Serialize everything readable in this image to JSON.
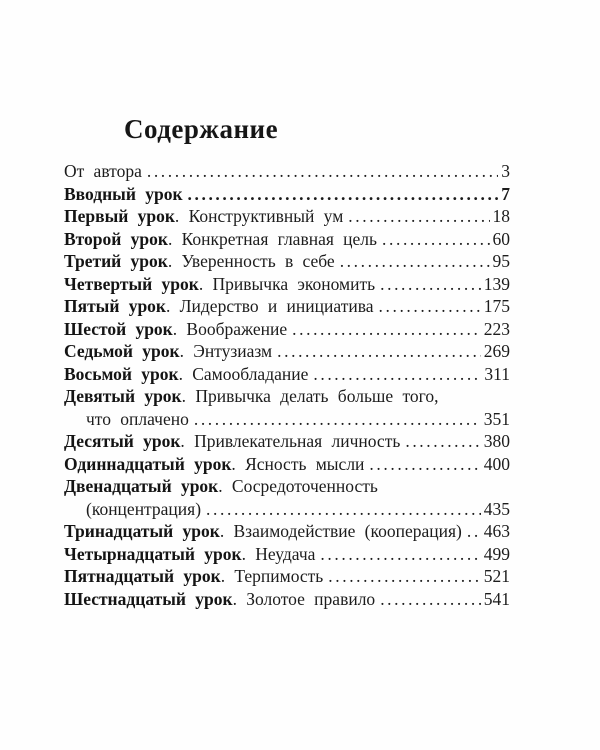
{
  "title": "Содержание",
  "toc": {
    "entries": [
      {
        "name": "",
        "sep": "",
        "title": "От автора",
        "page": "3",
        "bold": false
      },
      {
        "name": "Вводный урок",
        "sep": "",
        "title": "",
        "page": "7",
        "bold": true
      },
      {
        "name": "Первый урок",
        "sep": ".",
        "title": "Конструктивный ум",
        "page": "18",
        "bold": false
      },
      {
        "name": "Второй урок",
        "sep": ".",
        "title": "Конкретная главная цель",
        "page": "60",
        "bold": false
      },
      {
        "name": "Третий урок",
        "sep": ".",
        "title": "Уверенность в себе",
        "page": "95",
        "bold": false
      },
      {
        "name": "Четвертый урок",
        "sep": ".",
        "title": "Привычка экономить",
        "page": "139",
        "bold": false
      },
      {
        "name": "Пятый урок",
        "sep": ".",
        "title": "Лидерство и инициатива",
        "page": "175",
        "bold": false
      },
      {
        "name": "Шестой урок",
        "sep": ".",
        "title": "Воображение",
        "page": "223",
        "bold": false
      },
      {
        "name": "Седьмой урок",
        "sep": ".",
        "title": "Энтузиазм",
        "page": "269",
        "bold": false
      },
      {
        "name": "Восьмой урок",
        "sep": ".",
        "title": "Самообладание",
        "page": "311",
        "bold": false
      },
      {
        "name": "Девятый урок",
        "sep": ".",
        "title": "Привычка делать больше того,",
        "title2": "что оплачено",
        "page": "351",
        "bold": false
      },
      {
        "name": "Десятый урок",
        "sep": ".",
        "title": "Привлекательная личность",
        "page": "380",
        "bold": false
      },
      {
        "name": "Одиннадцатый урок",
        "sep": ".",
        "title": "Ясность мысли",
        "page": "400",
        "bold": false
      },
      {
        "name": "Двенадцатый урок",
        "sep": ".",
        "title": "Сосредоточенность",
        "title2": "(концентрация)",
        "page": "435",
        "bold": false
      },
      {
        "name": "Тринадцатый урок",
        "sep": ".",
        "title": "Взаимодействие (кооперация)",
        "page": "463",
        "bold": false
      },
      {
        "name": "Четырнадцатый урок",
        "sep": ".",
        "title": "Неудача",
        "page": "499",
        "bold": false
      },
      {
        "name": "Пятнадцатый урок",
        "sep": ".",
        "title": "Терпимость",
        "page": "521",
        "bold": false
      },
      {
        "name": "Шестнадцатый урок",
        "sep": ".",
        "title": "Золотое правило",
        "page": "541",
        "bold": false
      }
    ]
  }
}
